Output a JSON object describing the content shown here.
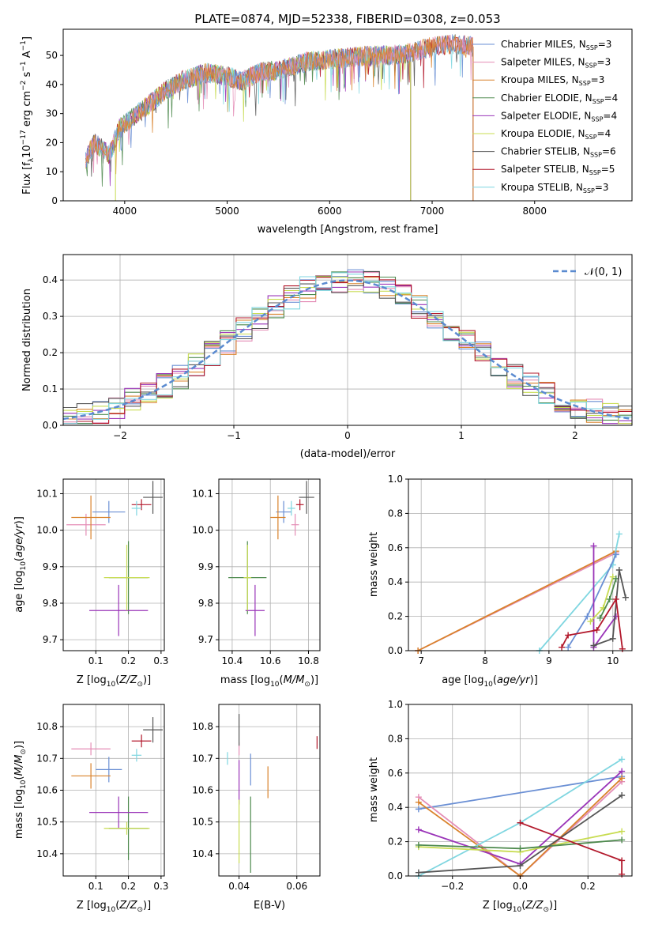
{
  "chart_data": [
    {
      "type": "line",
      "title": "PLATE=0874, MJD=52338, FIBERID=0308, z=0.053",
      "xlabel": "wavelength [Angstrom, rest frame]",
      "ylabel": "Flux [f_λ10^-17 erg cm^-2 s^-1 A^-1]",
      "xlim": [
        3400,
        8950
      ],
      "ylim": [
        0,
        59
      ],
      "xticks": [
        "4000",
        "5000",
        "6000",
        "7000",
        "8000"
      ],
      "yticks": [
        "0",
        "10",
        "20",
        "30",
        "40",
        "50"
      ],
      "legend_position": "upper-right",
      "continuum": {
        "x": [
          3620,
          3700,
          3850,
          3950,
          4050,
          4200,
          4400,
          4600,
          4800,
          5000,
          5150,
          5300,
          5500,
          5800,
          6100,
          6400,
          6600,
          6800,
          7000,
          7200,
          7400
        ],
        "y": [
          14,
          20,
          16,
          25,
          28,
          32,
          38,
          42,
          44,
          43,
          41,
          44,
          45,
          48,
          49,
          50,
          50,
          51,
          53,
          54,
          53
        ]
      },
      "series": [
        {
          "name": "Chabrier MILES, N_SSP=3",
          "color": "#6a8fd4",
          "x_end": 7400
        },
        {
          "name": "Salpeter MILES, N_SSP=3",
          "color": "#e48db6",
          "x_end": 7400
        },
        {
          "name": "Kroupa MILES, N_SSP=3",
          "color": "#d9822b",
          "x_end": 7400
        },
        {
          "name": "Chabrier ELODIE, N_SSP=4",
          "color": "#4e8a4e",
          "x_end": 6790
        },
        {
          "name": "Salpeter ELODIE, N_SSP=4",
          "color": "#9a34b8",
          "x_end": 6790
        },
        {
          "name": "Kroupa ELODIE, N_SSP=4",
          "color": "#c8dc52",
          "x_end": 6790
        },
        {
          "name": "Chabrier STELIB, N_SSP=6",
          "color": "#555555",
          "x_end": 7400
        },
        {
          "name": "Salpeter STELIB, N_SSP=5",
          "color": "#b2182b",
          "x_end": 7400
        },
        {
          "name": "Kroupa STELIB, N_SSP=3",
          "color": "#7fd6e0",
          "x_end": 7400
        }
      ]
    },
    {
      "type": "histogram",
      "xlabel": "(data-model)/error",
      "ylabel": "Normed distribution",
      "xlim": [
        -2.5,
        2.5
      ],
      "ylim": [
        0,
        0.47
      ],
      "xticks": [
        "−2",
        "−1",
        "0",
        "1",
        "2"
      ],
      "yticks": [
        "0.0",
        "0.1",
        "0.2",
        "0.3",
        "0.4"
      ],
      "legend_position": "upper-right",
      "reference": {
        "name": "𝒩(0, 1)",
        "mean": 0,
        "sigma": 1,
        "color": "#5b8bd0"
      },
      "series_colors": [
        "#6a8fd4",
        "#e48db6",
        "#d9822b",
        "#4e8a4e",
        "#9a34b8",
        "#c8dc52",
        "#555555",
        "#b2182b",
        "#7fd6e0"
      ]
    },
    {
      "type": "scatter",
      "xlabel": "Z [log10(Z/Z⊙)]",
      "ylabel": "age  [log10(age/yr)]",
      "xlim": [
        0.0,
        0.31
      ],
      "ylim": [
        9.67,
        10.14
      ],
      "xticks": [
        "0.1",
        "0.2",
        "0.3"
      ],
      "yticks": [
        "9.7",
        "9.8",
        "9.9",
        "10.0",
        "10.1"
      ],
      "points": [
        {
          "color": "#6a8fd4",
          "x": 0.14,
          "y": 10.05,
          "xerr": 0.05,
          "yerr": 0.03
        },
        {
          "color": "#e48db6",
          "x": 0.07,
          "y": 10.015,
          "xerr": 0.06,
          "yerr": 0.03
        },
        {
          "color": "#d9822b",
          "x": 0.085,
          "y": 10.035,
          "xerr": 0.06,
          "yerr": 0.06
        },
        {
          "color": "#4e8a4e",
          "x": 0.2,
          "y": 9.87,
          "xerr": 0.06,
          "yerr": 0.1
        },
        {
          "color": "#9a34b8",
          "x": 0.17,
          "y": 9.78,
          "xerr": 0.09,
          "yerr": 0.07
        },
        {
          "color": "#c8dc52",
          "x": 0.195,
          "y": 9.87,
          "xerr": 0.07,
          "yerr": 0.09
        },
        {
          "color": "#555555",
          "x": 0.275,
          "y": 10.09,
          "xerr": 0.03,
          "yerr": 0.045
        },
        {
          "color": "#b2182b",
          "x": 0.24,
          "y": 10.07,
          "xerr": 0.03,
          "yerr": 0.015
        },
        {
          "color": "#7fd6e0",
          "x": 0.225,
          "y": 10.06,
          "xerr": 0.015,
          "yerr": 0.02
        }
      ]
    },
    {
      "type": "scatter",
      "xlabel": "mass [log10(M/M⊙)]",
      "ylabel": "",
      "xlim": [
        10.33,
        10.86
      ],
      "ylim": [
        9.67,
        10.14
      ],
      "xticks": [
        "10.4",
        "10.6",
        "10.8"
      ],
      "yticks": [
        "9.7",
        "9.8",
        "9.9",
        "10.0",
        "10.1"
      ],
      "points": [
        {
          "color": "#6a8fd4",
          "x": 10.67,
          "y": 10.05,
          "xerr": 0.04,
          "yerr": 0.03
        },
        {
          "color": "#e48db6",
          "x": 10.73,
          "y": 10.015,
          "xerr": 0.02,
          "yerr": 0.03
        },
        {
          "color": "#d9822b",
          "x": 10.64,
          "y": 10.035,
          "xerr": 0.04,
          "yerr": 0.06
        },
        {
          "color": "#4e8a4e",
          "x": 10.48,
          "y": 9.87,
          "xerr": 0.1,
          "yerr": 0.1
        },
        {
          "color": "#9a34b8",
          "x": 10.52,
          "y": 9.78,
          "xerr": 0.05,
          "yerr": 0.07
        },
        {
          "color": "#c8dc52",
          "x": 10.48,
          "y": 9.87,
          "xerr": 0.02,
          "yerr": 0.09
        },
        {
          "color": "#555555",
          "x": 10.79,
          "y": 10.09,
          "xerr": 0.04,
          "yerr": 0.045
        },
        {
          "color": "#b2182b",
          "x": 10.755,
          "y": 10.07,
          "xerr": 0.02,
          "yerr": 0.015
        },
        {
          "color": "#7fd6e0",
          "x": 10.71,
          "y": 10.06,
          "xerr": 0.02,
          "yerr": 0.02
        }
      ]
    },
    {
      "type": "line",
      "xlabel": "age  [log10(age/yr)]",
      "ylabel": "mass weight",
      "xlim": [
        6.8,
        10.3
      ],
      "ylim": [
        0,
        1.0
      ],
      "xticks": [
        "7",
        "8",
        "9",
        "10"
      ],
      "yticks": [
        "0.0",
        "0.2",
        "0.4",
        "0.6",
        "0.8",
        "1.0"
      ],
      "series": [
        {
          "color": "#e48db6",
          "x": [
            6.95,
            10.05
          ],
          "y": [
            0.0,
            0.57
          ]
        },
        {
          "color": "#d9822b",
          "x": [
            6.95,
            10.05
          ],
          "y": [
            0.0,
            0.58
          ]
        },
        {
          "color": "#7fd6e0",
          "x": [
            8.85,
            10.0,
            10.1
          ],
          "y": [
            0.0,
            0.5,
            0.68
          ]
        },
        {
          "color": "#6a8fd4",
          "x": [
            9.3,
            9.6,
            10.05
          ],
          "y": [
            0.02,
            0.2,
            0.56
          ]
        },
        {
          "color": "#9a34b8",
          "x": [
            9.7,
            9.7,
            10.05
          ],
          "y": [
            0.61,
            0.02,
            0.2
          ]
        },
        {
          "color": "#c8dc52",
          "x": [
            9.65,
            9.85,
            10.0
          ],
          "y": [
            0.17,
            0.25,
            0.43
          ]
        },
        {
          "color": "#4e8a4e",
          "x": [
            9.8,
            9.95,
            10.05
          ],
          "y": [
            0.19,
            0.3,
            0.42
          ]
        },
        {
          "color": "#555555",
          "x": [
            9.7,
            10.0,
            10.1,
            10.2
          ],
          "y": [
            0.03,
            0.07,
            0.47,
            0.31
          ]
        },
        {
          "color": "#b2182b",
          "x": [
            9.2,
            9.3,
            9.75,
            10.05,
            10.15
          ],
          "y": [
            0.02,
            0.09,
            0.12,
            0.3,
            0.01
          ]
        }
      ]
    },
    {
      "type": "scatter",
      "xlabel": "Z [log10(Z/Z⊙)]",
      "ylabel": "mass [log10(M/M⊙)]",
      "xlim": [
        0.0,
        0.31
      ],
      "ylim": [
        10.33,
        10.87
      ],
      "xticks": [
        "0.1",
        "0.2",
        "0.3"
      ],
      "yticks": [
        "10.4",
        "10.5",
        "10.6",
        "10.7",
        "10.8"
      ],
      "points": [
        {
          "color": "#6a8fd4",
          "x": 0.14,
          "y": 10.665,
          "xerr": 0.04,
          "yerr": 0.04
        },
        {
          "color": "#e48db6",
          "x": 0.085,
          "y": 10.73,
          "xerr": 0.06,
          "yerr": 0.02
        },
        {
          "color": "#d9822b",
          "x": 0.085,
          "y": 10.645,
          "xerr": 0.06,
          "yerr": 0.04
        },
        {
          "color": "#4e8a4e",
          "x": 0.2,
          "y": 10.48,
          "xerr": 0.06,
          "yerr": 0.1
        },
        {
          "color": "#9a34b8",
          "x": 0.17,
          "y": 10.53,
          "xerr": 0.09,
          "yerr": 0.05
        },
        {
          "color": "#c8dc52",
          "x": 0.195,
          "y": 10.48,
          "xerr": 0.07,
          "yerr": 0.02
        },
        {
          "color": "#555555",
          "x": 0.275,
          "y": 10.79,
          "xerr": 0.03,
          "yerr": 0.04
        },
        {
          "color": "#b2182b",
          "x": 0.24,
          "y": 10.755,
          "xerr": 0.03,
          "yerr": 0.02
        },
        {
          "color": "#7fd6e0",
          "x": 0.225,
          "y": 10.71,
          "xerr": 0.015,
          "yerr": 0.02
        }
      ]
    },
    {
      "type": "scatter",
      "xlabel": "E(B-V)",
      "ylabel": "",
      "xlim": [
        0.033,
        0.068
      ],
      "ylim": [
        10.33,
        10.87
      ],
      "xticks": [
        "0.04",
        "0.06"
      ],
      "yticks": [
        "10.4",
        "10.5",
        "10.6",
        "10.7",
        "10.8"
      ],
      "points": [
        {
          "color": "#6a8fd4",
          "x": 0.044,
          "y": 10.665,
          "yerr": 0.05
        },
        {
          "color": "#e48db6",
          "x": 0.04,
          "y": 10.73,
          "yerr": 0.02
        },
        {
          "color": "#d9822b",
          "x": 0.05,
          "y": 10.625,
          "yerr": 0.05
        },
        {
          "color": "#4e8a4e",
          "x": 0.044,
          "y": 10.46,
          "yerr": 0.12
        },
        {
          "color": "#9a34b8",
          "x": 0.04,
          "y": 10.625,
          "yerr": 0.07
        },
        {
          "color": "#c8dc52",
          "x": 0.04,
          "y": 10.47,
          "yerr": 0.1
        },
        {
          "color": "#555555",
          "x": 0.04,
          "y": 10.79,
          "yerr": 0.05
        },
        {
          "color": "#b2182b",
          "x": 0.067,
          "y": 10.75,
          "yerr": 0.02
        },
        {
          "color": "#7fd6e0",
          "x": 0.036,
          "y": 10.7,
          "yerr": 0.02
        }
      ]
    },
    {
      "type": "line",
      "xlabel": "Z [log10(Z/Z⊙)]",
      "ylabel": "mass weight",
      "xlim": [
        -0.33,
        0.33
      ],
      "ylim": [
        0,
        1.0
      ],
      "xticks": [
        "−0.2",
        "0.0",
        "0.2"
      ],
      "yticks": [
        "0.0",
        "0.2",
        "0.4",
        "0.6",
        "0.8",
        "1.0"
      ],
      "series": [
        {
          "color": "#6a8fd4",
          "x": [
            -0.3,
            0.3
          ],
          "y": [
            0.39,
            0.58
          ]
        },
        {
          "color": "#e48db6",
          "x": [
            -0.3,
            0.0,
            0.3
          ],
          "y": [
            0.46,
            0.0,
            0.55
          ]
        },
        {
          "color": "#d9822b",
          "x": [
            -0.3,
            0.0,
            0.3
          ],
          "y": [
            0.43,
            0.0,
            0.57
          ]
        },
        {
          "color": "#7fd6e0",
          "x": [
            -0.3,
            0.0,
            0.3
          ],
          "y": [
            0.0,
            0.31,
            0.68
          ]
        },
        {
          "color": "#9a34b8",
          "x": [
            -0.3,
            0.0,
            0.3
          ],
          "y": [
            0.27,
            0.07,
            0.61
          ]
        },
        {
          "color": "#c8dc52",
          "x": [
            -0.3,
            0.0,
            0.3
          ],
          "y": [
            0.17,
            0.14,
            0.26
          ]
        },
        {
          "color": "#4e8a4e",
          "x": [
            -0.3,
            0.0,
            0.3
          ],
          "y": [
            0.18,
            0.16,
            0.21
          ]
        },
        {
          "color": "#555555",
          "x": [
            -0.3,
            0.0,
            0.3
          ],
          "y": [
            0.02,
            0.06,
            0.47
          ]
        },
        {
          "color": "#b2182b",
          "x": [
            0.0,
            0.3,
            0.3
          ],
          "y": [
            0.31,
            0.09,
            0.01
          ]
        }
      ]
    }
  ]
}
